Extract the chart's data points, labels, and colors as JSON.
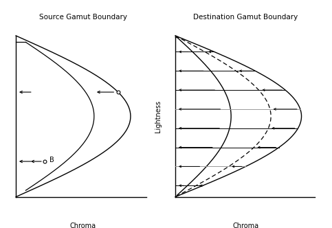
{
  "left_title": "Source Gamut Boundary",
  "right_title": "Destination Gamut Boundary",
  "left_xlabel": "Chroma",
  "right_xlabel": "Chroma",
  "ylabel": "Lightness",
  "bg_color": "#ffffff",
  "line_color": "#000000"
}
